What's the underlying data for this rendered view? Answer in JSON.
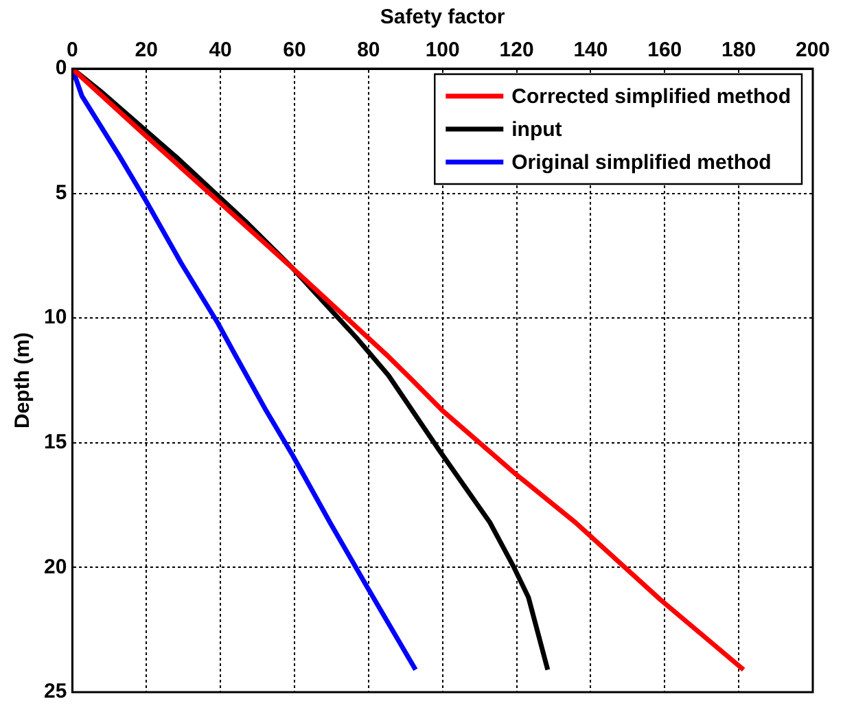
{
  "chart_data": {
    "type": "line",
    "xlabel": "Safety factor",
    "ylabel": "Depth (m)",
    "xlim": [
      0,
      200
    ],
    "xticks": [
      0,
      20,
      40,
      60,
      80,
      100,
      120,
      140,
      160,
      180,
      200
    ],
    "ylim": [
      25,
      0
    ],
    "yticks": [
      0,
      5,
      10,
      15,
      20,
      25
    ],
    "grid": true,
    "legend": "top right",
    "line_style": "solid",
    "marker": "none",
    "series": [
      {
        "name": "Corrected simplified method",
        "color": "#ff0000",
        "x": [
          0,
          19.9,
          39.3,
          59.5,
          84.7,
          91.2,
          99.9,
          119.3,
          135.9,
          158.9,
          181.3
        ],
        "values": [
          0,
          2.7,
          5.3,
          8,
          11.45,
          12.4,
          13.7,
          16.2,
          18.2,
          21.3,
          24.1
        ]
      },
      {
        "name": "input",
        "color": "#000000",
        "x": [
          0,
          7.6,
          28.5,
          47.3,
          59.5,
          76.8,
          85.4,
          99.1,
          112.8,
          119.3,
          123.2,
          128.4
        ],
        "values": [
          0,
          0.9,
          3.6,
          6.2,
          8,
          10.8,
          12.3,
          15.3,
          18.2,
          20,
          21.2,
          24.1
        ]
      },
      {
        "name": "Original simplified method",
        "color": "#0000ff",
        "x": [
          0,
          2.6,
          12.7,
          19.9,
          29.4,
          39.3,
          43.7,
          52.3,
          59.5,
          69.6,
          79.7,
          92.7
        ],
        "values": [
          0,
          1.1,
          3.5,
          5.3,
          7.8,
          10.2,
          11.4,
          13.7,
          15.5,
          18.2,
          20.8,
          24.1
        ]
      }
    ]
  }
}
